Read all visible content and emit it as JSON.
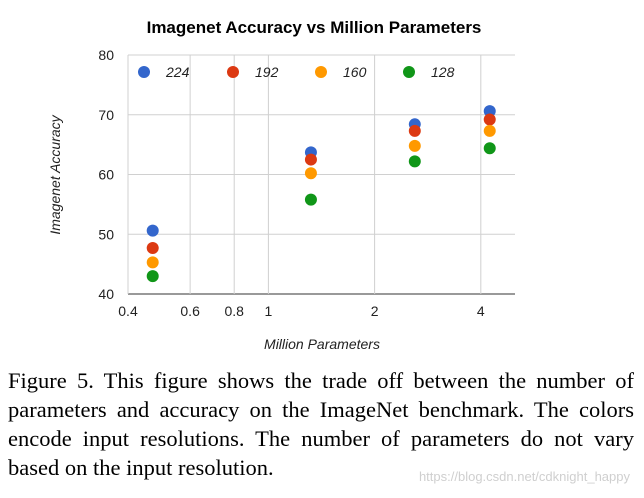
{
  "chart_data": {
    "type": "scatter",
    "title": "Imagenet Accuracy vs Million Parameters",
    "xlabel": "Million Parameters",
    "ylabel": "Imagenet Accuracy",
    "x_scale": "log",
    "xlim": [
      0.4,
      5
    ],
    "ylim": [
      40,
      80
    ],
    "x_ticks": [
      0.4,
      0.6,
      0.8,
      1,
      2,
      4
    ],
    "x_tick_labels": [
      "0.4",
      "0.6",
      "0.8",
      "1",
      "2",
      "4"
    ],
    "y_ticks": [
      40,
      50,
      60,
      70,
      80
    ],
    "y_tick_labels": [
      "40",
      "50",
      "60",
      "70",
      "80"
    ],
    "grid": true,
    "legend_position": "top",
    "series": [
      {
        "name": "224",
        "color": "#3366cc",
        "x": [
          0.47,
          1.32,
          2.6,
          4.24
        ],
        "y": [
          50.6,
          63.7,
          68.4,
          70.6
        ]
      },
      {
        "name": "192",
        "color": "#dc3912",
        "x": [
          0.47,
          1.32,
          2.6,
          4.24
        ],
        "y": [
          47.7,
          62.5,
          67.3,
          69.2
        ]
      },
      {
        "name": "160",
        "color": "#ff9900",
        "x": [
          0.47,
          1.32,
          2.6,
          4.24
        ],
        "y": [
          45.3,
          60.2,
          64.8,
          67.3
        ]
      },
      {
        "name": "128",
        "color": "#109618",
        "x": [
          0.47,
          1.32,
          2.6,
          4.24
        ],
        "y": [
          43.0,
          55.8,
          62.2,
          64.4
        ]
      }
    ]
  },
  "caption": "Figure 5. This figure shows the trade off between the number of parameters and accuracy on the ImageNet benchmark. The colors encode input resolutions. The number of parameters do not vary based on the input resolution.",
  "watermark": "https://blog.csdn.net/cdknight_happy"
}
